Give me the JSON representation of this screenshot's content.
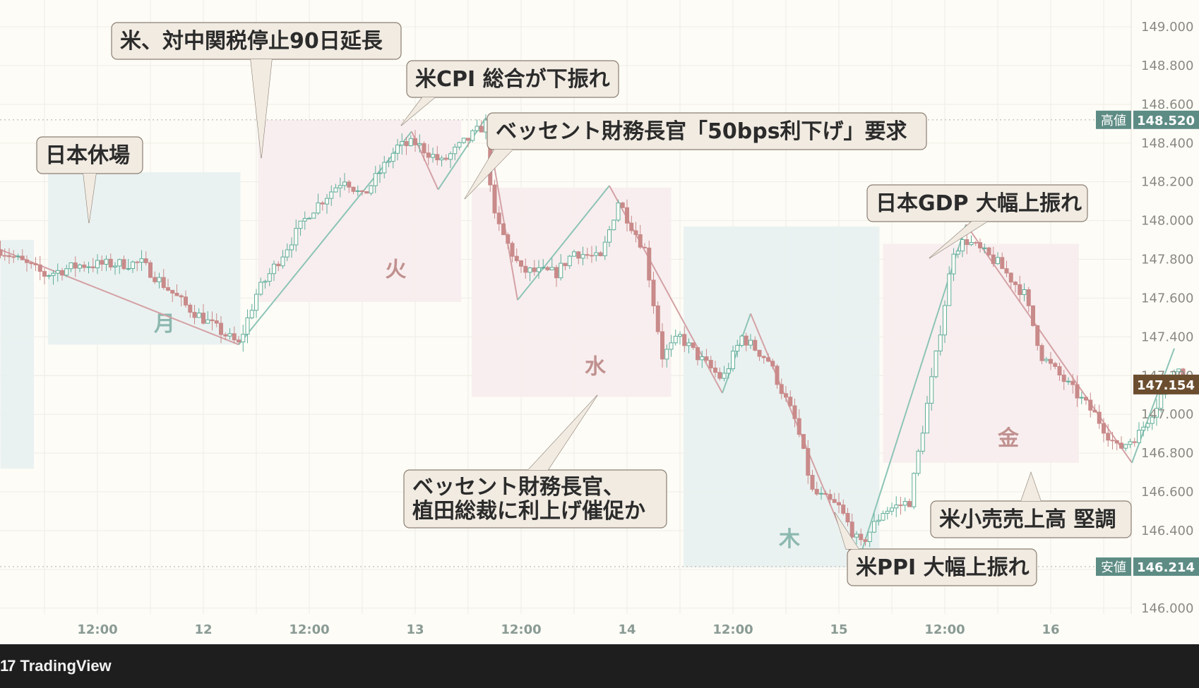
{
  "chart_data": {
    "type": "candlestick",
    "y_axis": {
      "range": [
        146.0,
        149.0
      ],
      "ticks": [
        "149.000",
        "148.800",
        "148.600",
        "148.400",
        "148.200",
        "148.000",
        "147.800",
        "147.600",
        "147.400",
        "147.200",
        "147.000",
        "146.800",
        "146.600",
        "146.400",
        "146.000"
      ],
      "position": "right"
    },
    "x_axis": {
      "ticks": [
        {
          "label": "12:00",
          "t": 12
        },
        {
          "label": "12",
          "t": 24
        },
        {
          "label": "12:00",
          "t": 36
        },
        {
          "label": "13",
          "t": 48
        },
        {
          "label": "12:00",
          "t": 60
        },
        {
          "label": "14",
          "t": 72
        },
        {
          "label": "12:00",
          "t": 84
        },
        {
          "label": "15",
          "t": 96
        },
        {
          "label": "12:00",
          "t": 108
        },
        {
          "label": "16",
          "t": 120
        }
      ],
      "unit_note": "t in hours from 11 00:00"
    },
    "price_markers": [
      {
        "name": "高値",
        "value": 148.52,
        "label": "148.520"
      },
      {
        "name": "安値",
        "value": 146.214,
        "label": "146.214"
      }
    ],
    "last_price": {
      "value": 147.154,
      "label": "147.154"
    },
    "day_labels": [
      {
        "label": "月",
        "t": 3.8,
        "price": 147.43
      },
      {
        "label": "火",
        "t": 16.9,
        "price": 147.71
      },
      {
        "label": "水",
        "t": 28.2,
        "price": 147.21
      },
      {
        "label": "木",
        "t": 39.2,
        "price": 146.32
      },
      {
        "label": "金",
        "t": 51.6,
        "price": 146.84
      }
    ],
    "zigzag": [
      {
        "t": -5.5,
        "p": 147.85
      },
      {
        "t": 8.0,
        "p": 147.36
      },
      {
        "t": 17.8,
        "p": 148.46
      },
      {
        "t": 19.3,
        "p": 148.16
      },
      {
        "t": 22.0,
        "p": 148.53
      },
      {
        "t": 23.8,
        "p": 147.59
      },
      {
        "t": 29.0,
        "p": 148.18
      },
      {
        "t": 35.4,
        "p": 147.11
      },
      {
        "t": 37.0,
        "p": 147.52
      },
      {
        "t": 43.0,
        "p": 146.21
      },
      {
        "t": 49.2,
        "p": 147.98
      },
      {
        "t": 58.6,
        "p": 146.75
      },
      {
        "t": 61.0,
        "p": 147.34
      }
    ],
    "candles_anchor": [
      {
        "t": -5.5,
        "p": 147.85
      },
      {
        "t": -3.0,
        "p": 147.72
      },
      {
        "t": -1.0,
        "p": 147.77
      },
      {
        "t": 2.5,
        "p": 147.78
      },
      {
        "t": 5.0,
        "p": 147.56
      },
      {
        "t": 8.0,
        "p": 147.36
      },
      {
        "t": 9.0,
        "p": 147.62
      },
      {
        "t": 12.0,
        "p": 148.04
      },
      {
        "t": 14.0,
        "p": 148.22
      },
      {
        "t": 15.0,
        "p": 148.12
      },
      {
        "t": 17.0,
        "p": 148.38
      },
      {
        "t": 18.0,
        "p": 148.4
      },
      {
        "t": 19.5,
        "p": 148.3
      },
      {
        "t": 22.0,
        "p": 148.5
      },
      {
        "t": 22.4,
        "p": 148.03
      },
      {
        "t": 24.0,
        "p": 147.74
      },
      {
        "t": 26.0,
        "p": 147.73
      },
      {
        "t": 27.0,
        "p": 147.84
      },
      {
        "t": 28.5,
        "p": 147.8
      },
      {
        "t": 29.5,
        "p": 148.1
      },
      {
        "t": 31.0,
        "p": 147.85
      },
      {
        "t": 32.0,
        "p": 147.3
      },
      {
        "t": 33.0,
        "p": 147.4
      },
      {
        "t": 34.0,
        "p": 147.3
      },
      {
        "t": 35.4,
        "p": 147.18
      },
      {
        "t": 36.5,
        "p": 147.4
      },
      {
        "t": 38.0,
        "p": 147.28
      },
      {
        "t": 39.6,
        "p": 146.95
      },
      {
        "t": 40.5,
        "p": 146.6
      },
      {
        "t": 42.0,
        "p": 146.52
      },
      {
        "t": 43.2,
        "p": 146.32
      },
      {
        "t": 44.5,
        "p": 146.5
      },
      {
        "t": 46.0,
        "p": 146.55
      },
      {
        "t": 47.5,
        "p": 147.3
      },
      {
        "t": 48.5,
        "p": 147.85
      },
      {
        "t": 49.2,
        "p": 147.9
      },
      {
        "t": 51.0,
        "p": 147.78
      },
      {
        "t": 52.5,
        "p": 147.62
      },
      {
        "t": 53.5,
        "p": 147.3
      },
      {
        "t": 55.0,
        "p": 147.15
      },
      {
        "t": 56.5,
        "p": 147.0
      },
      {
        "t": 57.8,
        "p": 146.82
      },
      {
        "t": 59.0,
        "p": 146.9
      },
      {
        "t": 60.0,
        "p": 147.05
      },
      {
        "t": 61.0,
        "p": 147.25
      },
      {
        "t": 62.0,
        "p": 147.15
      }
    ],
    "session_boxes": [
      {
        "kind": "blue",
        "t0": -5.5,
        "t1": -3.6,
        "pTop": 147.9,
        "pBot": 146.72
      },
      {
        "kind": "blue",
        "t0": -2.8,
        "t1": 8.1,
        "pTop": 148.25,
        "pBot": 147.36
      },
      {
        "kind": "red",
        "t0": 9.1,
        "t1": 20.6,
        "pTop": 148.52,
        "pBot": 147.58
      },
      {
        "kind": "red",
        "t0": 21.2,
        "t1": 32.5,
        "pTop": 148.17,
        "pBot": 147.09
      },
      {
        "kind": "blue",
        "t0": 33.2,
        "t1": 44.3,
        "pTop": 147.97,
        "pBot": 146.21
      },
      {
        "kind": "red",
        "t0": 44.5,
        "t1": 55.6,
        "pTop": 147.88,
        "pBot": 146.75
      }
    ],
    "annotations": [
      {
        "text": "米、対中関税停止90日延長",
        "lines": [
          "米、対中関税停止90日延長"
        ]
      },
      {
        "text": "米CPI 総合が下振れ",
        "lines": [
          "米CPI 総合が下振れ"
        ]
      },
      {
        "text": "日本休場",
        "lines": [
          "日本休場"
        ]
      },
      {
        "text": "ベッセント財務長官「50bps利下げ」要求",
        "lines": [
          "ベッセント財務長官「50bps利下げ」要求"
        ]
      },
      {
        "text": "日本GDP 大幅上振れ",
        "lines": [
          "日本GDP 大幅上振れ"
        ]
      },
      {
        "text": "ベッセント財務長官、植田総裁に利上げ催促か",
        "lines": [
          "ベッセント財務長官、",
          "植田総裁に利上げ催促か"
        ]
      },
      {
        "text": "米PPI 大幅上振れ",
        "lines": [
          "米PPI 大幅上振れ"
        ]
      },
      {
        "text": "米小売売上高 堅調",
        "lines": [
          "米小売売上高 堅調"
        ]
      }
    ],
    "colors": {
      "up": "#5fae9b",
      "down": "#c98a8a",
      "zigzag_up": "#8cc4b6",
      "zigzag_down": "#d4a1a5",
      "box_blue": "#e8f1f0",
      "box_red": "#f7eced",
      "label_blue": "#8cb8af",
      "label_red": "#c0918f",
      "annotation_bg": "#f1ebe2",
      "annotation_border": "#8c7f73",
      "high_low_tag": "#5d8c84",
      "last_price_tag": "#6b4e2f",
      "background": "#fdfcf7",
      "grid": "#efede4"
    }
  },
  "footer": {
    "brand": "TradingView",
    "brand_mark": "17"
  }
}
